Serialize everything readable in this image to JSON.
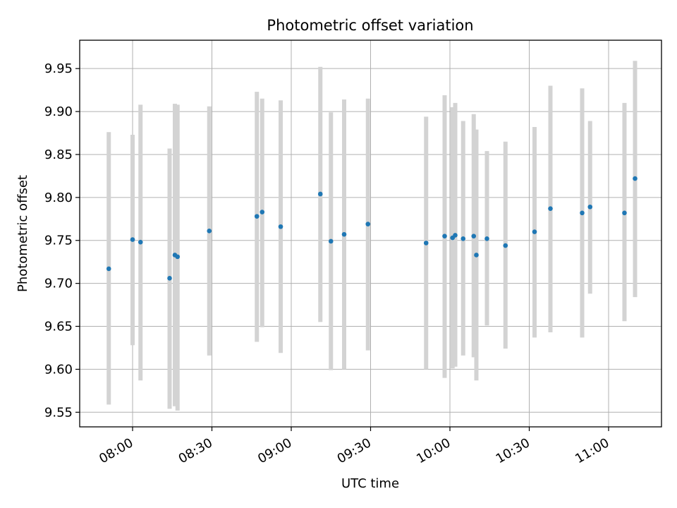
{
  "chart_data": {
    "type": "scatter",
    "title": "Photometric offset variation",
    "xlabel": "UTC time",
    "ylabel": "Photometric offset",
    "x_ticks": [
      "08:00",
      "08:30",
      "09:00",
      "09:30",
      "10:00",
      "10:30",
      "11:00"
    ],
    "y_ticks": [
      "9.55",
      "9.60",
      "9.65",
      "9.70",
      "9.75",
      "9.80",
      "9.85",
      "9.90",
      "9.95"
    ],
    "xlim": [
      "07:40",
      "11:20"
    ],
    "ylim": [
      9.533,
      9.983
    ],
    "grid": true,
    "colors": {
      "point": "#1f77b4",
      "errorbar": "#d3d3d3",
      "grid": "#b0b0b0"
    },
    "points": [
      {
        "x": "07:51",
        "y": 9.717,
        "y_low": 9.559,
        "y_high": 9.876
      },
      {
        "x": "08:00",
        "y": 9.751,
        "y_low": 9.628,
        "y_high": 9.873
      },
      {
        "x": "08:03",
        "y": 9.748,
        "y_low": 9.587,
        "y_high": 9.908
      },
      {
        "x": "08:14",
        "y": 9.706,
        "y_low": 9.554,
        "y_high": 9.857
      },
      {
        "x": "08:16",
        "y": 9.733,
        "y_low": 9.557,
        "y_high": 9.909
      },
      {
        "x": "08:17",
        "y": 9.731,
        "y_low": 9.552,
        "y_high": 9.908
      },
      {
        "x": "08:29",
        "y": 9.761,
        "y_low": 9.616,
        "y_high": 9.906
      },
      {
        "x": "08:47",
        "y": 9.778,
        "y_low": 9.632,
        "y_high": 9.923
      },
      {
        "x": "08:49",
        "y": 9.783,
        "y_low": 9.649,
        "y_high": 9.915
      },
      {
        "x": "08:56",
        "y": 9.766,
        "y_low": 9.619,
        "y_high": 9.913
      },
      {
        "x": "09:11",
        "y": 9.804,
        "y_low": 9.655,
        "y_high": 9.952
      },
      {
        "x": "09:15",
        "y": 9.749,
        "y_low": 9.599,
        "y_high": 9.899
      },
      {
        "x": "09:20",
        "y": 9.757,
        "y_low": 9.6,
        "y_high": 9.914
      },
      {
        "x": "09:29",
        "y": 9.769,
        "y_low": 9.622,
        "y_high": 9.915
      },
      {
        "x": "09:51",
        "y": 9.747,
        "y_low": 9.6,
        "y_high": 9.894
      },
      {
        "x": "09:58",
        "y": 9.755,
        "y_low": 9.59,
        "y_high": 9.919
      },
      {
        "x": "10:01",
        "y": 9.753,
        "y_low": 9.601,
        "y_high": 9.905
      },
      {
        "x": "10:02",
        "y": 9.756,
        "y_low": 9.603,
        "y_high": 9.91
      },
      {
        "x": "10:05",
        "y": 9.752,
        "y_low": 9.616,
        "y_high": 9.889
      },
      {
        "x": "10:09",
        "y": 9.755,
        "y_low": 9.614,
        "y_high": 9.897
      },
      {
        "x": "10:10",
        "y": 9.733,
        "y_low": 9.587,
        "y_high": 9.879
      },
      {
        "x": "10:14",
        "y": 9.752,
        "y_low": 9.651,
        "y_high": 9.854
      },
      {
        "x": "10:21",
        "y": 9.744,
        "y_low": 9.624,
        "y_high": 9.865
      },
      {
        "x": "10:32",
        "y": 9.76,
        "y_low": 9.637,
        "y_high": 9.882
      },
      {
        "x": "10:38",
        "y": 9.787,
        "y_low": 9.643,
        "y_high": 9.93
      },
      {
        "x": "10:50",
        "y": 9.782,
        "y_low": 9.637,
        "y_high": 9.927
      },
      {
        "x": "10:53",
        "y": 9.789,
        "y_low": 9.688,
        "y_high": 9.889
      },
      {
        "x": "11:06",
        "y": 9.782,
        "y_low": 9.656,
        "y_high": 9.91
      },
      {
        "x": "11:10",
        "y": 9.822,
        "y_low": 9.684,
        "y_high": 9.959
      }
    ]
  }
}
